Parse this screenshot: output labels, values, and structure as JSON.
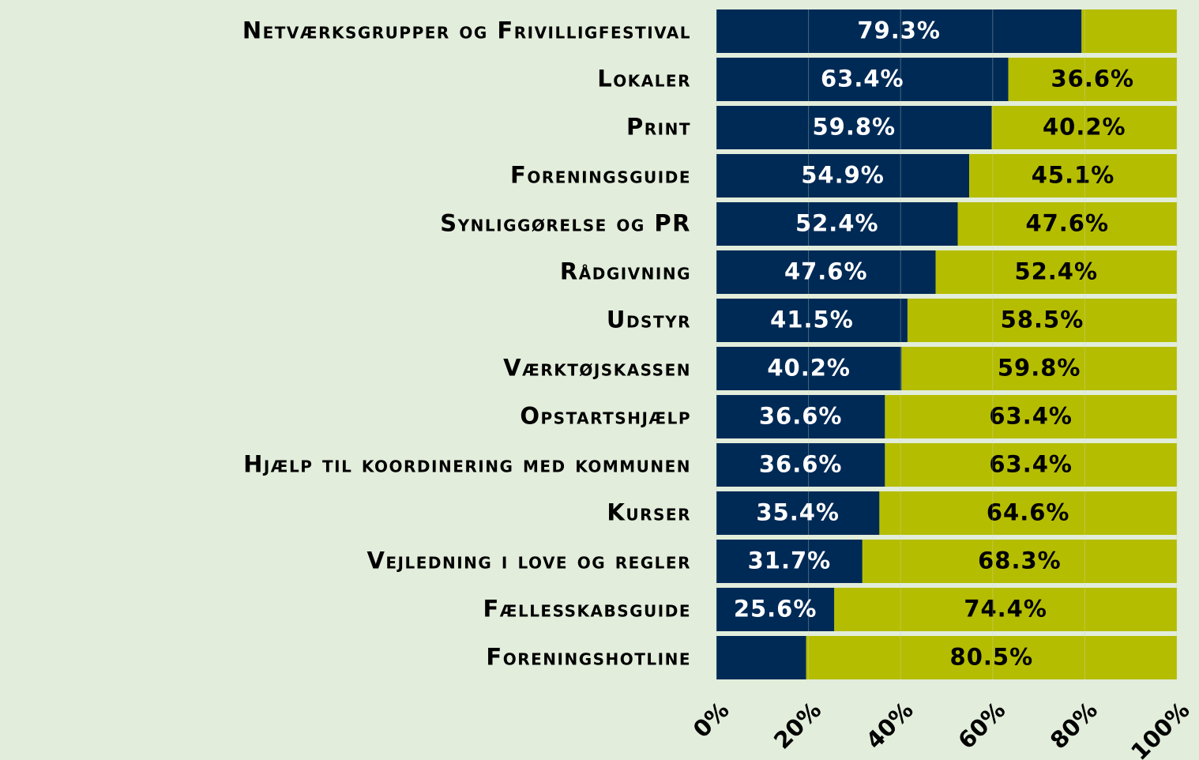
{
  "chart_data": {
    "type": "stacked_barh",
    "categories": [
      "Netværksgrupper og Frivilligfestival",
      "Lokaler",
      "Print",
      "Foreningsguide",
      "Synliggørelse og PR",
      "Rådgivning",
      "Udstyr",
      "Værktøjskassen",
      "Opstartshjælp",
      "Hjælp til koordinering med kommunen",
      "Kurser",
      "Vejledning i love og regler",
      "Fællesskabsguide",
      "Foreningshotline"
    ],
    "series": [
      {
        "color": "#002a56",
        "label_color": "#ffffff",
        "values": [
          79.3,
          63.4,
          59.8,
          54.9,
          52.4,
          47.6,
          41.5,
          40.2,
          36.6,
          36.6,
          35.4,
          31.7,
          25.6,
          19.5
        ],
        "value_labels": [
          "79.3%",
          "63.4%",
          "59.8%",
          "54.9%",
          "52.4%",
          "47.6%",
          "41.5%",
          "40.2%",
          "36.6%",
          "36.6%",
          "35.4%",
          "31.7%",
          "25.6%",
          null
        ]
      },
      {
        "color": "#b5bd00",
        "label_color": "#000000",
        "values": [
          20.7,
          36.6,
          40.2,
          45.1,
          47.6,
          52.4,
          58.5,
          59.8,
          63.4,
          63.4,
          64.6,
          68.3,
          74.4,
          80.5
        ],
        "value_labels": [
          null,
          "36.6%",
          "40.2%",
          "45.1%",
          "47.6%",
          "52.4%",
          "58.5%",
          "59.8%",
          "63.4%",
          "63.4%",
          "64.6%",
          "68.3%",
          "74.4%",
          "80.5%"
        ]
      }
    ],
    "xlim": [
      0,
      100
    ],
    "xticks": [
      {
        "value": 0,
        "label": "0%"
      },
      {
        "value": 20,
        "label": "20%"
      },
      {
        "value": 40,
        "label": "40%"
      },
      {
        "value": 60,
        "label": "60%"
      },
      {
        "value": 80,
        "label": "80%"
      },
      {
        "value": 100,
        "label": "100%"
      }
    ],
    "grid": true
  }
}
